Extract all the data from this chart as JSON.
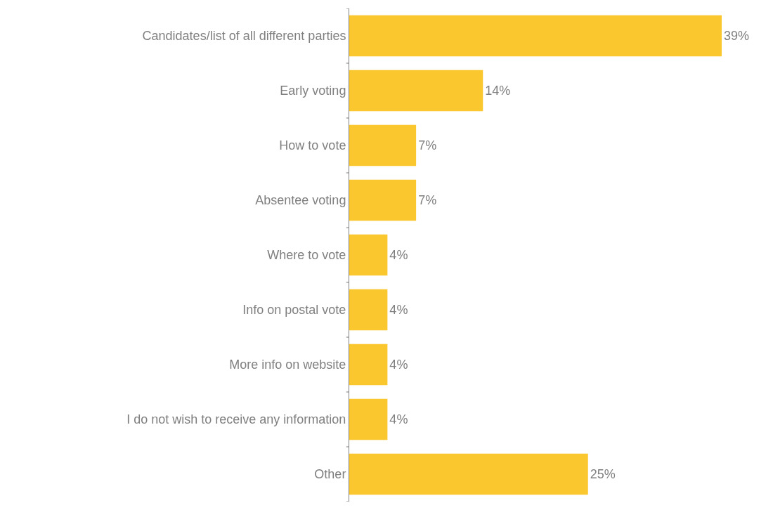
{
  "chart_data": {
    "type": "bar",
    "orientation": "horizontal",
    "categories": [
      "Candidates/list of all different parties",
      "Early voting",
      "How to vote",
      "Absentee voting",
      "Where to vote",
      "Info on postal vote",
      "More info on website",
      "I do not wish to receive any information",
      "Other"
    ],
    "values": [
      39,
      14,
      7,
      7,
      4,
      4,
      4,
      4,
      25
    ],
    "value_labels": [
      "39%",
      "14%",
      "7%",
      "7%",
      "4%",
      "4%",
      "4%",
      "4%",
      "25%"
    ],
    "color": "#fbc72e",
    "legend": false
  }
}
